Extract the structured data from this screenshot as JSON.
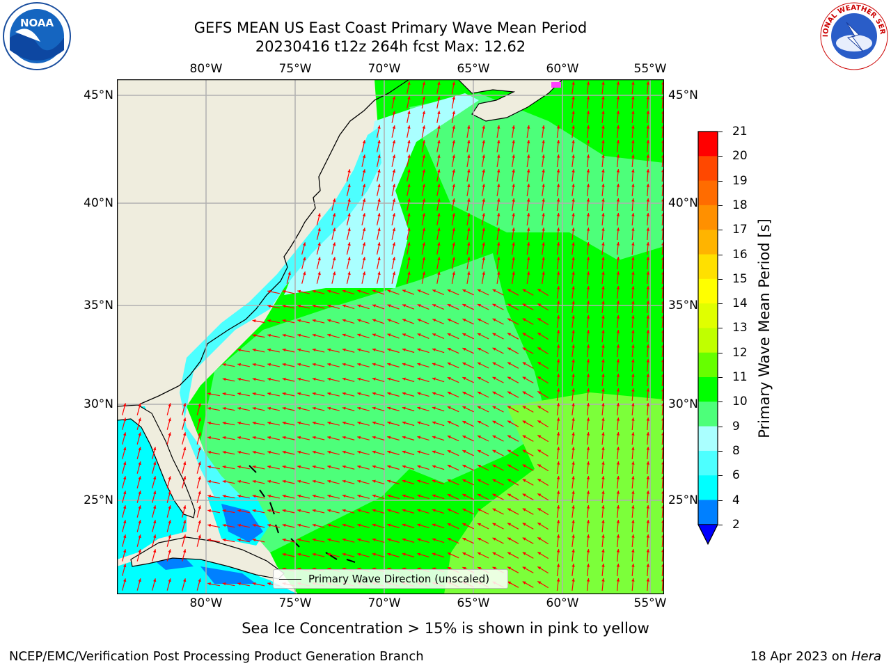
{
  "title": {
    "line1": "GEFS MEAN US East Coast Primary Wave Mean Period",
    "line2": "20230416 t12z 264h fcst   Max: 12.62"
  },
  "logos": {
    "left": "NOAA",
    "right": "NATIONAL WEATHER SERVICE"
  },
  "map": {
    "lon_ticks": [
      "80°W",
      "75°W",
      "70°W",
      "65°W",
      "60°W",
      "55°W"
    ],
    "lat_ticks": [
      "45°N",
      "40°N",
      "35°N",
      "30°N",
      "25°N"
    ],
    "legend_label": "Primary Wave Direction (unscaled)",
    "colors": {
      "land": "#efedde",
      "grid": "#b0b0b0",
      "arrow": "#ff0000",
      "coast": "#000000"
    }
  },
  "colorbar": {
    "label": "Primary Wave Mean Period [s]",
    "ticks": [
      "21",
      "20",
      "19",
      "18",
      "17",
      "16",
      "15",
      "14",
      "13",
      "12",
      "11",
      "10",
      "9",
      "8",
      "6",
      "4",
      "2"
    ],
    "colors": [
      "#ff0000",
      "#ff2400",
      "#ff4800",
      "#ff6c00",
      "#ff9000",
      "#ffb400",
      "#ffe000",
      "#ffff00",
      "#e0ff00",
      "#c0ff00",
      "#66ff00",
      "#00ff00",
      "#4dff7a",
      "#aaffff",
      "#4dffff",
      "#00ffff",
      "#0080ff",
      "#0000ff"
    ]
  },
  "subtitle": "Sea Ice Concentration > 15% is shown in pink to yellow",
  "footer": {
    "left": "NCEP/EMC/Verification Post Processing Product Generation Branch",
    "right_date": "18 Apr 2023 on ",
    "right_machine": "Hera"
  }
}
